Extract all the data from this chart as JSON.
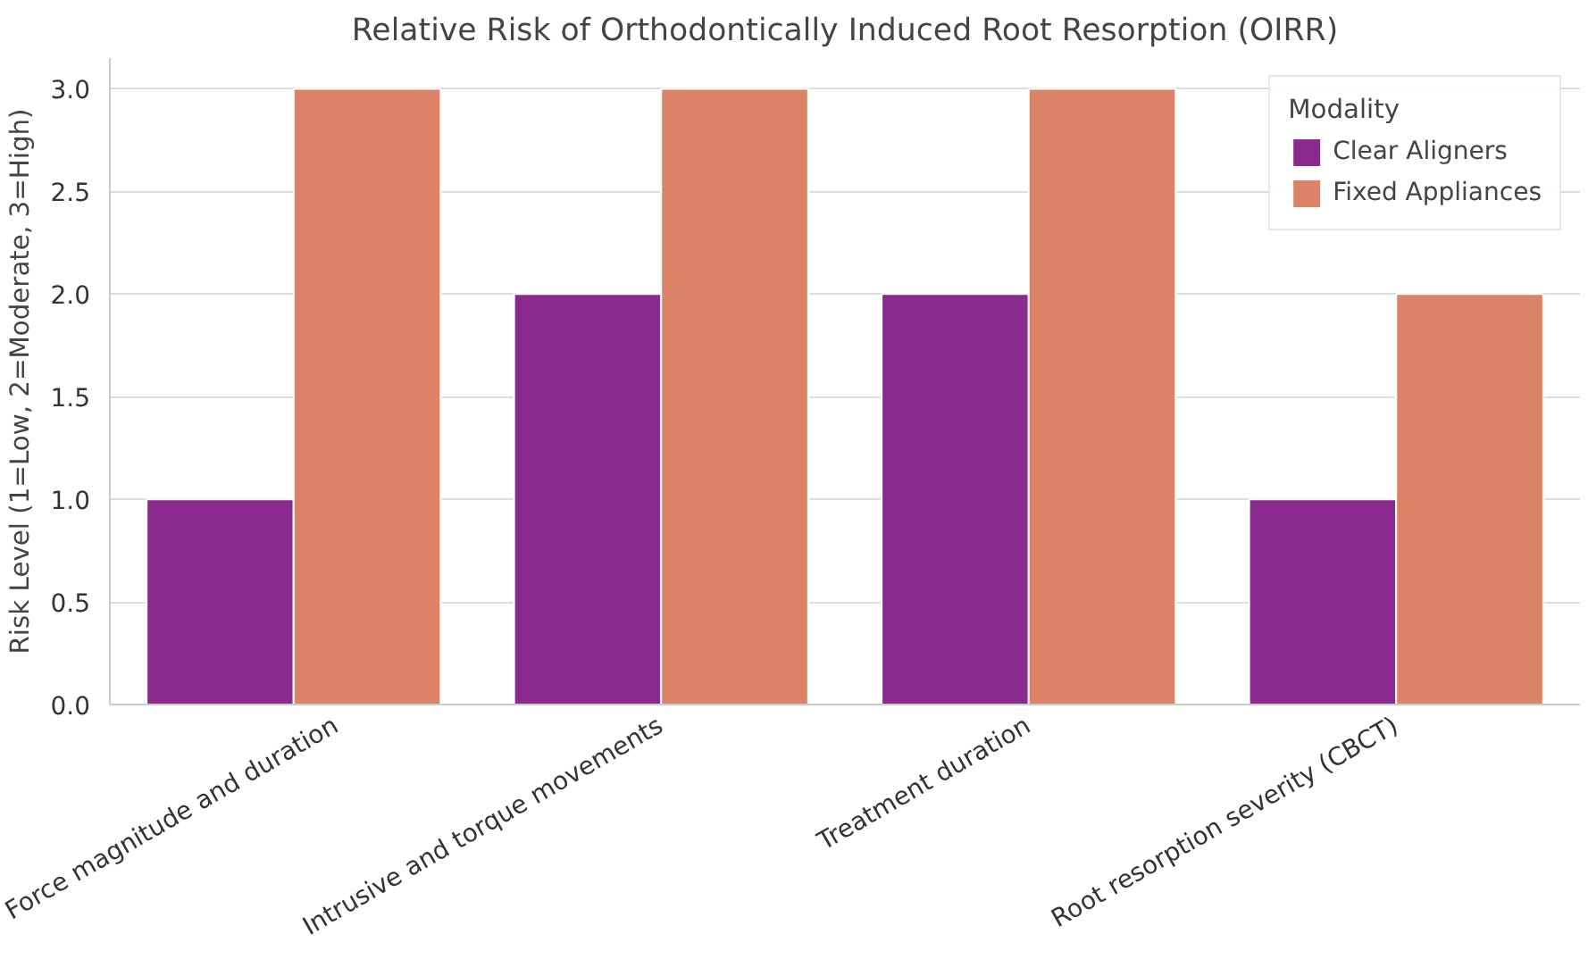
{
  "chart_data": {
    "type": "bar",
    "title": "Relative Risk of Orthodontically Induced Root Resorption (OIRR)",
    "ylabel": "Risk Level (1=Low, 2=Moderate, 3=High)",
    "legend_title": "Modality",
    "categories": [
      "Force magnitude and duration",
      "Intrusive and torque movements",
      "Treatment duration",
      "Root resorption severity (CBCT)"
    ],
    "series": [
      {
        "name": "Clear Aligners",
        "color": "#8b2a8e",
        "values": [
          1,
          2,
          2,
          1
        ]
      },
      {
        "name": "Fixed Appliances",
        "color": "#db8366",
        "values": [
          3,
          3,
          3,
          2
        ]
      }
    ],
    "ylim": [
      0,
      3.15
    ],
    "yticks": [
      {
        "value": 0,
        "label": "0.0"
      },
      {
        "value": 0.5,
        "label": "0.5"
      },
      {
        "value": 1,
        "label": "1.0"
      },
      {
        "value": 1.5,
        "label": "1.5"
      },
      {
        "value": 2,
        "label": "2.0"
      },
      {
        "value": 2.5,
        "label": "2.5"
      },
      {
        "value": 3,
        "label": "3.0"
      }
    ],
    "grid": "y",
    "legend": "top right"
  }
}
